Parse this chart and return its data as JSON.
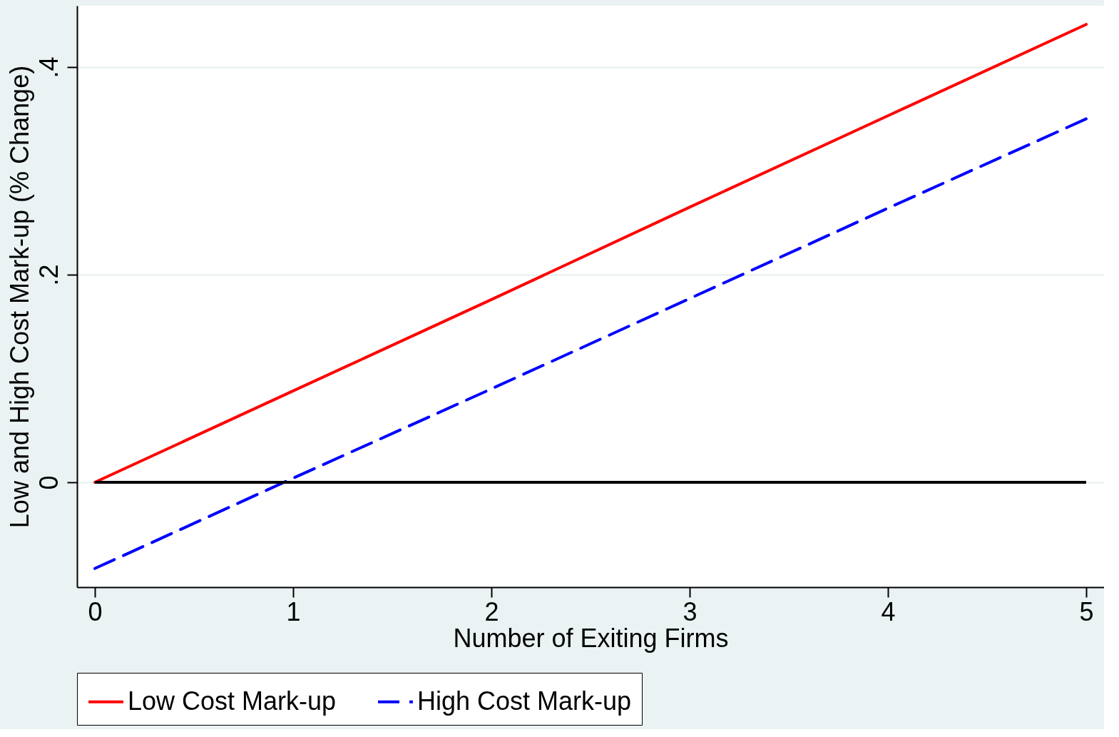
{
  "chart_data": {
    "type": "line",
    "xlabel": "Number of Exiting Firms",
    "ylabel": "Low and High Cost Mark-up (% Change)",
    "x": [
      0,
      1,
      2,
      3,
      4,
      5
    ],
    "series": [
      {
        "name": "Low Cost Mark-up",
        "color": "#ff0000",
        "line_style": "solid",
        "values": [
          0,
          0.088,
          0.176,
          0.265,
          0.353,
          0.441
        ]
      },
      {
        "name": "High Cost Mark-up",
        "color": "#0000ff",
        "line_style": "dashed",
        "values": [
          -0.083,
          0.004,
          0.09,
          0.177,
          0.264,
          0.35
        ]
      }
    ],
    "ref_lines": [
      {
        "axis": "y",
        "value": 0,
        "color": "#000000"
      }
    ],
    "xlim": [
      -0.09,
      5.09
    ],
    "ylim": [
      -0.101,
      0.459
    ],
    "xticks": [
      0,
      1,
      2,
      3,
      4,
      5
    ],
    "yticks": [
      {
        "value": 0,
        "label": "0"
      },
      {
        "value": 0.2,
        "label": ".2"
      },
      {
        "value": 0.4,
        "label": ".4"
      }
    ],
    "grid": "y",
    "legend": "bottom",
    "marker": "none"
  }
}
